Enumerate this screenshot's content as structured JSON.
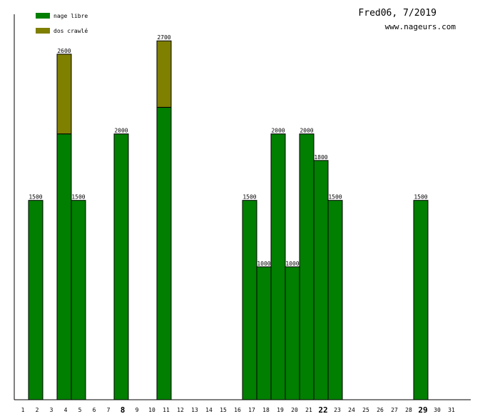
{
  "chart_data": {
    "type": "bar",
    "stacked": true,
    "title": "Fred06, 7/2019",
    "subtitle": "www.nageurs.com",
    "categories": [
      "1",
      "2",
      "3",
      "4",
      "5",
      "6",
      "7",
      "8",
      "9",
      "10",
      "11",
      "12",
      "13",
      "14",
      "15",
      "16",
      "17",
      "18",
      "19",
      "20",
      "21",
      "22",
      "23",
      "24",
      "25",
      "26",
      "27",
      "28",
      "29",
      "30",
      "31"
    ],
    "bold_categories": [
      "8",
      "22",
      "29"
    ],
    "series": [
      {
        "name": "nage libre",
        "color": "#007f00",
        "values": [
          0,
          1500,
          0,
          2000,
          1500,
          0,
          0,
          2000,
          0,
          0,
          2200,
          0,
          0,
          0,
          0,
          0,
          1500,
          1000,
          2000,
          1000,
          2000,
          1800,
          1500,
          0,
          0,
          0,
          0,
          0,
          1500,
          0,
          0
        ]
      },
      {
        "name": "dos crawlé",
        "color": "#7f7f00",
        "values": [
          0,
          0,
          0,
          600,
          0,
          0,
          0,
          0,
          0,
          0,
          500,
          0,
          0,
          0,
          0,
          0,
          0,
          0,
          0,
          0,
          0,
          0,
          0,
          0,
          0,
          0,
          0,
          0,
          0,
          0,
          0
        ]
      }
    ],
    "totals": [
      0,
      1500,
      0,
      2600,
      1500,
      0,
      0,
      2000,
      0,
      0,
      2700,
      0,
      0,
      0,
      0,
      0,
      1500,
      1000,
      2000,
      1000,
      2000,
      1800,
      1500,
      0,
      0,
      0,
      0,
      0,
      1500,
      0,
      0
    ],
    "ylim": [
      0,
      2900
    ],
    "legend_position": "top-left",
    "grid": false
  }
}
